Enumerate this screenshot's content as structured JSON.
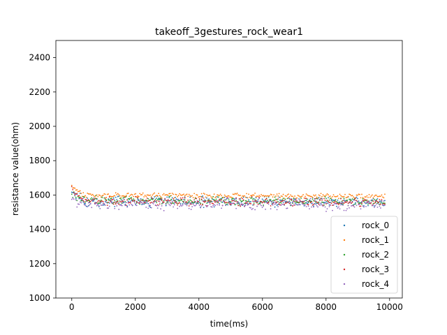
{
  "chart_data": {
    "type": "scatter",
    "title": "takeoff_3gestures_rock_wear1",
    "xlabel": "time(ms)",
    "ylabel": "resistance value(ohm)",
    "xlim": [
      -500,
      10400
    ],
    "ylim": [
      1000,
      2500
    ],
    "xticks": [
      0,
      2000,
      4000,
      6000,
      8000,
      10000
    ],
    "yticks": [
      1000,
      1200,
      1400,
      1600,
      1800,
      2000,
      2200,
      2400
    ],
    "grid": false,
    "legend_position": "lower right",
    "series": [
      {
        "name": "rock_0",
        "color": "#1f77b4",
        "mean": 1565,
        "start": 1625,
        "spread": 25,
        "x_range": [
          0,
          9850
        ],
        "count": 300,
        "phase": 1.3,
        "count_approximate": true
      },
      {
        "name": "rock_1",
        "color": "#ff7f0e",
        "mean": 1600,
        "start": 1645,
        "spread": 12,
        "x_range": [
          0,
          9850
        ],
        "count": 300,
        "phase": 2.7,
        "count_approximate": true
      },
      {
        "name": "rock_2",
        "color": "#2ca02c",
        "mean": 1570,
        "start": 1600,
        "spread": 20,
        "x_range": [
          0,
          9850
        ],
        "count": 300,
        "phase": 4.1,
        "count_approximate": true
      },
      {
        "name": "rock_3",
        "color": "#d62728",
        "mean": 1565,
        "start": 1635,
        "spread": 22,
        "x_range": [
          0,
          9850
        ],
        "count": 300,
        "phase": 5.9,
        "count_approximate": true
      },
      {
        "name": "rock_4",
        "color": "#9467bd",
        "mean": 1550,
        "start": 1580,
        "spread": 28,
        "x_range": [
          0,
          9850
        ],
        "count": 300,
        "phase": 7.3,
        "count_approximate": true
      }
    ]
  }
}
